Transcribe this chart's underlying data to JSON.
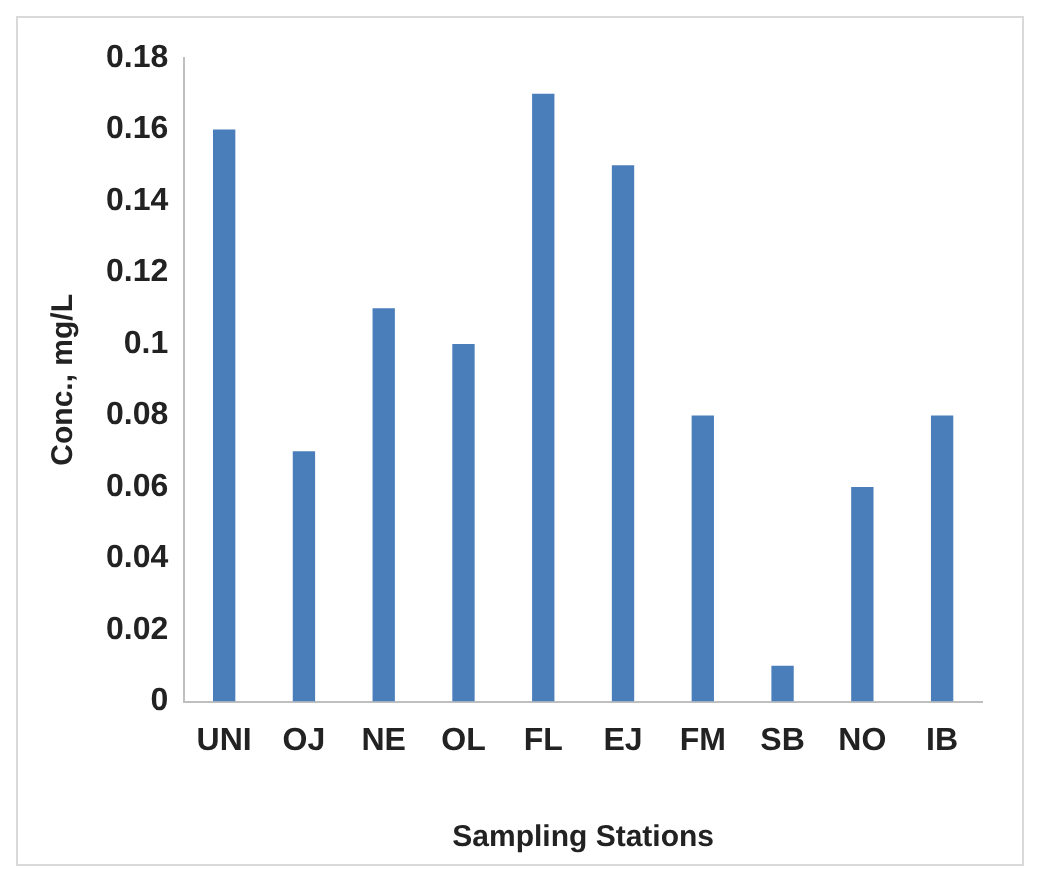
{
  "chart_data": {
    "type": "bar",
    "xlabel": "Sampling Stations",
    "ylabel": "Conc., mg/L",
    "categories": [
      "UNI",
      "OJ",
      "NE",
      "OL",
      "FL",
      "EJ",
      "FM",
      "SB",
      "NO",
      "IB"
    ],
    "values": [
      0.16,
      0.07,
      0.11,
      0.1,
      0.17,
      0.15,
      0.08,
      0.01,
      0.06,
      0.08
    ],
    "color": "#4a7ebb",
    "ylim": [
      0,
      0.18
    ],
    "yticks": [
      0,
      0.02,
      0.04,
      0.06,
      0.08,
      0.1,
      0.12,
      0.14,
      0.16,
      0.18
    ],
    "grid": false,
    "legend": false
  }
}
